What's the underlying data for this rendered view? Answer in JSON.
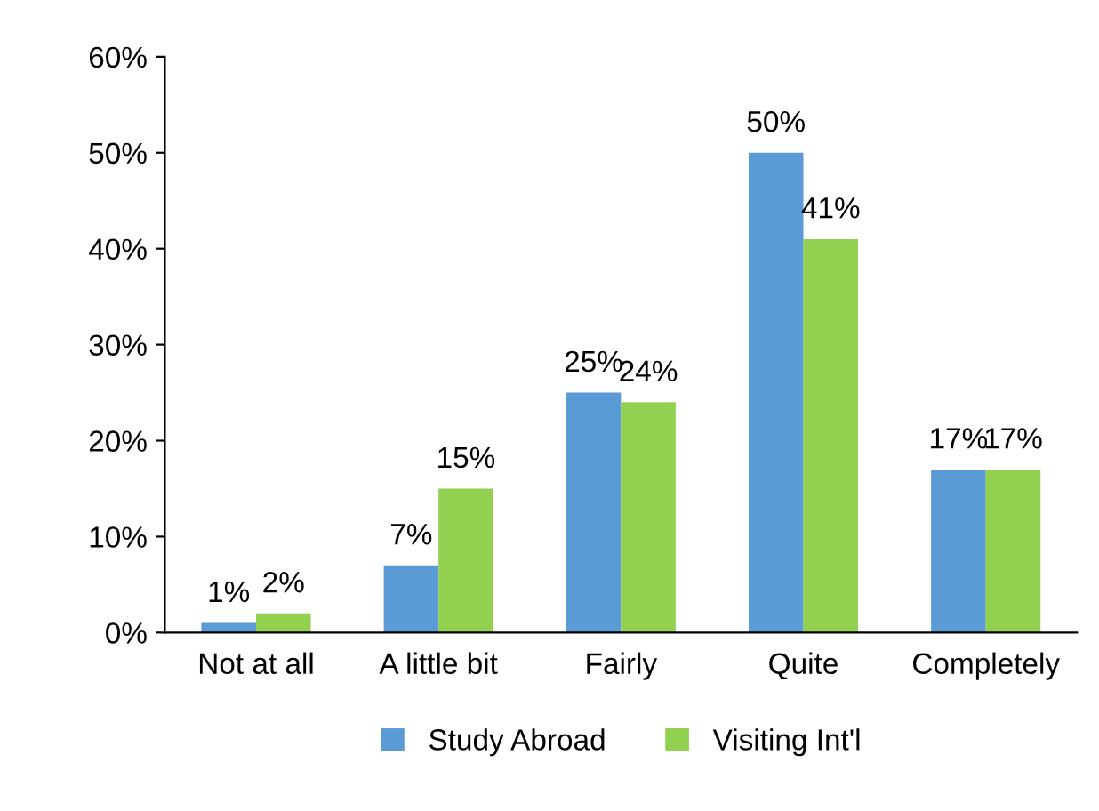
{
  "chart_data": {
    "type": "bar",
    "categories": [
      "Not at all",
      "A little bit",
      "Fairly",
      "Quite",
      "Completely"
    ],
    "series": [
      {
        "name": "Study Abroad",
        "color": "#5b9bd5",
        "values": [
          1,
          7,
          25,
          50,
          17
        ],
        "value_labels": [
          "1%",
          "7%",
          "25%",
          "50%",
          "17%"
        ]
      },
      {
        "name": "Visiting Int'l",
        "color": "#92d050",
        "values": [
          2,
          15,
          24,
          41,
          17
        ],
        "value_labels": [
          "2%",
          "15%",
          "24%",
          "41%",
          "17%"
        ]
      }
    ],
    "ylim": [
      0,
      60
    ],
    "yticks": [
      {
        "value": 0,
        "label": "0%"
      },
      {
        "value": 10,
        "label": "10%"
      },
      {
        "value": 20,
        "label": "20%"
      },
      {
        "value": 30,
        "label": "30%"
      },
      {
        "value": 40,
        "label": "40%"
      },
      {
        "value": 50,
        "label": "50%"
      },
      {
        "value": 60,
        "label": "60%"
      }
    ],
    "grid": false,
    "legend": "bottom"
  }
}
